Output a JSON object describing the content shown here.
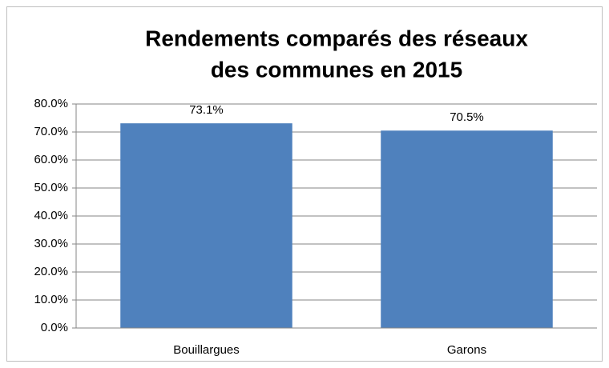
{
  "chart_data": {
    "type": "bar",
    "title": [
      "Rendements comparés des réseaux",
      "des communes en 2015"
    ],
    "categories": [
      "Bouillargues",
      "Garons"
    ],
    "values": [
      73.1,
      70.5
    ],
    "value_labels": [
      "73.1%",
      "70.5%"
    ],
    "color": "#4f81bd",
    "ylim": [
      0,
      80
    ],
    "yticks": [
      {
        "value": 0,
        "label": "0.0%"
      },
      {
        "value": 10,
        "label": "10.0%"
      },
      {
        "value": 20,
        "label": "20.0%"
      },
      {
        "value": 30,
        "label": "30.0%"
      },
      {
        "value": 40,
        "label": "40.0%"
      },
      {
        "value": 50,
        "label": "50.0%"
      },
      {
        "value": 60,
        "label": "60.0%"
      },
      {
        "value": 70,
        "label": "70.0%"
      },
      {
        "value": 80,
        "label": "80.0%"
      }
    ],
    "grid": true
  }
}
